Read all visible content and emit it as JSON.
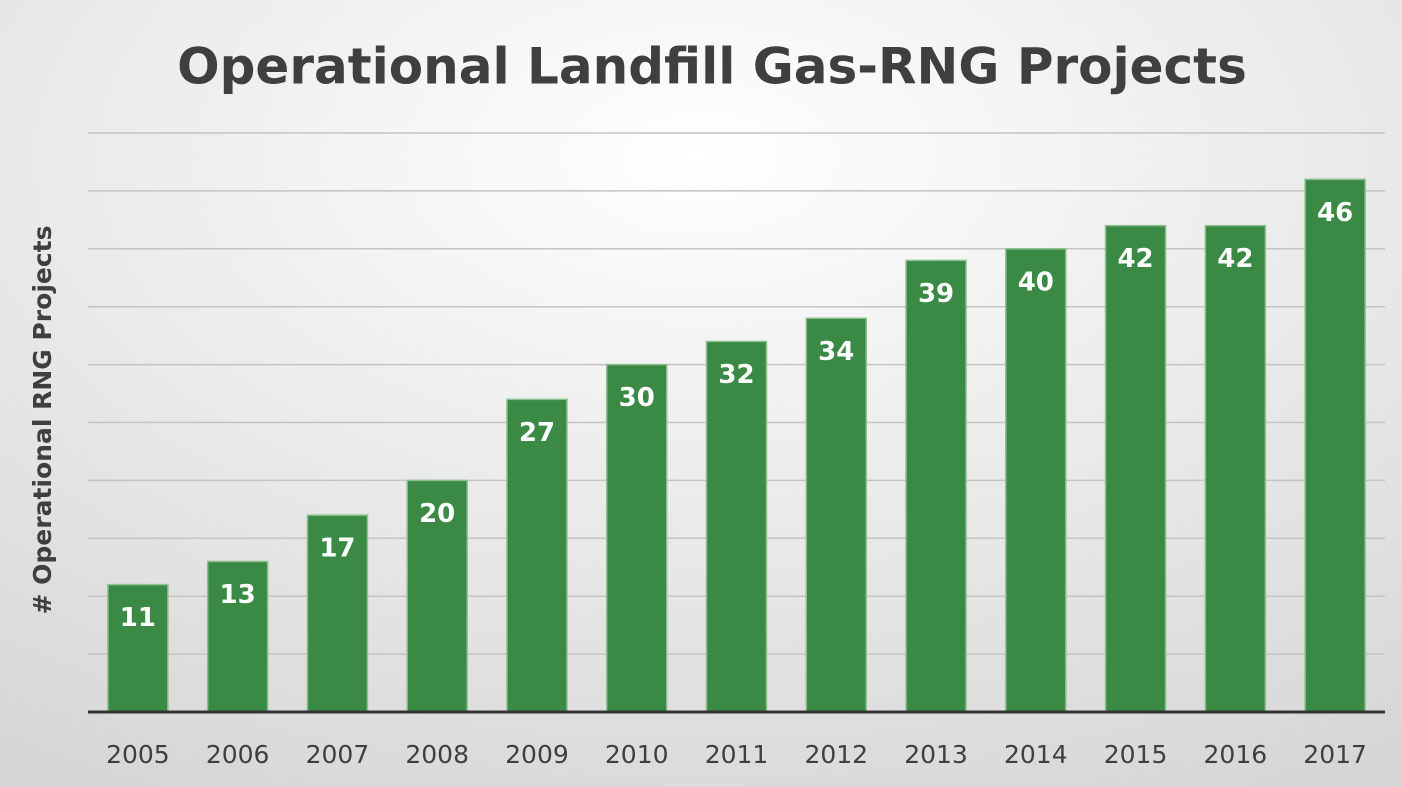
{
  "chart_data": {
    "type": "bar",
    "title": "Operational Landfill Gas-RNG Projects",
    "y_label": "# Operational RNG Projects",
    "categories": [
      "2005",
      "2006",
      "2007",
      "2008",
      "2009",
      "2010",
      "2011",
      "2012",
      "2013",
      "2014",
      "2015",
      "2016",
      "2017"
    ],
    "values": [
      11,
      13,
      17,
      20,
      27,
      30,
      32,
      34,
      39,
      40,
      42,
      42,
      46
    ],
    "color": "#3a8a45",
    "ylim": [
      0,
      50
    ],
    "yticks": [
      0,
      5,
      10,
      15,
      20,
      25,
      30,
      35,
      40,
      45,
      50
    ],
    "grid": true
  }
}
